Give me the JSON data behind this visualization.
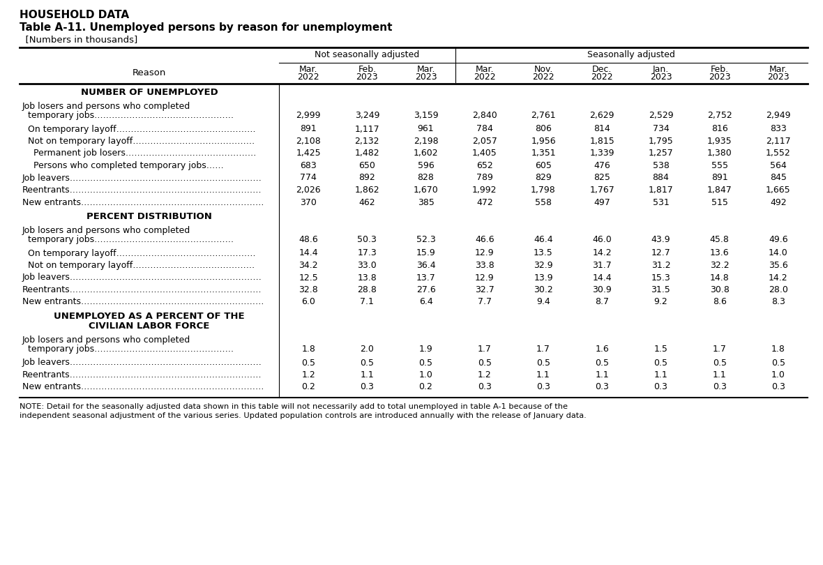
{
  "title1": "HOUSEHOLD DATA",
  "title2": "Table A-11. Unemployed persons by reason for unemployment",
  "title3": "  [Numbers in thousands]",
  "note_line1": "NOTE: Detail for the seasonally adjusted data shown in this table will not necessarily add to total unemployed in table A-1 because of the",
  "note_line2": "independent seasonal adjustment of the various series. Updated population controls are introduced annually with the release of January data.",
  "col_group1": "Not seasonally adjusted",
  "col_group2": "Seasonally adjusted",
  "col_headers": [
    [
      "Mar.",
      "2022"
    ],
    [
      "Feb.",
      "2023"
    ],
    [
      "Mar.",
      "2023"
    ],
    [
      "Mar.",
      "2022"
    ],
    [
      "Nov.",
      "2022"
    ],
    [
      "Dec.",
      "2022"
    ],
    [
      "Jan.",
      "2023"
    ],
    [
      "Feb.",
      "2023"
    ],
    [
      "Mar.",
      "2023"
    ]
  ],
  "rows": [
    {
      "type": "section",
      "label": "NUMBER OF UNEMPLOYED",
      "label2": ""
    },
    {
      "type": "data2",
      "label": "Job losers and persons who completed",
      "label2": "  temporary jobs…………………………………………",
      "values": [
        "2,999",
        "3,249",
        "3,159",
        "2,840",
        "2,761",
        "2,629",
        "2,529",
        "2,752",
        "2,949"
      ]
    },
    {
      "type": "data1",
      "label": "  On temporary layoff…………………………………………",
      "values": [
        "891",
        "1,117",
        "961",
        "784",
        "806",
        "814",
        "734",
        "816",
        "833"
      ]
    },
    {
      "type": "data1",
      "label": "  Not on temporary layoff……………………………………",
      "values": [
        "2,108",
        "2,132",
        "2,198",
        "2,057",
        "1,956",
        "1,815",
        "1,795",
        "1,935",
        "2,117"
      ]
    },
    {
      "type": "data1",
      "label": "    Permanent job losers………………………………………",
      "values": [
        "1,425",
        "1,482",
        "1,602",
        "1,405",
        "1,351",
        "1,339",
        "1,257",
        "1,380",
        "1,552"
      ]
    },
    {
      "type": "data1",
      "label": "    Persons who completed temporary jobs……",
      "values": [
        "683",
        "650",
        "596",
        "652",
        "605",
        "476",
        "538",
        "555",
        "564"
      ]
    },
    {
      "type": "data1",
      "label": "Job leavers…………………………………………………………",
      "values": [
        "774",
        "892",
        "828",
        "789",
        "829",
        "825",
        "884",
        "891",
        "845"
      ]
    },
    {
      "type": "data1",
      "label": "Reentrants…………………………………………………………",
      "values": [
        "2,026",
        "1,862",
        "1,670",
        "1,992",
        "1,798",
        "1,767",
        "1,817",
        "1,847",
        "1,665"
      ]
    },
    {
      "type": "data1",
      "label": "New entrants………………………………………………………",
      "values": [
        "370",
        "462",
        "385",
        "472",
        "558",
        "497",
        "531",
        "515",
        "492"
      ]
    },
    {
      "type": "section",
      "label": "PERCENT DISTRIBUTION",
      "label2": ""
    },
    {
      "type": "data2",
      "label": "Job losers and persons who completed",
      "label2": "  temporary jobs…………………………………………",
      "values": [
        "48.6",
        "50.3",
        "52.3",
        "46.6",
        "46.4",
        "46.0",
        "43.9",
        "45.8",
        "49.6"
      ]
    },
    {
      "type": "data1",
      "label": "  On temporary layoff…………………………………………",
      "values": [
        "14.4",
        "17.3",
        "15.9",
        "12.9",
        "13.5",
        "14.2",
        "12.7",
        "13.6",
        "14.0"
      ]
    },
    {
      "type": "data1",
      "label": "  Not on temporary layoff……………………………………",
      "values": [
        "34.2",
        "33.0",
        "36.4",
        "33.8",
        "32.9",
        "31.7",
        "31.2",
        "32.2",
        "35.6"
      ]
    },
    {
      "type": "data1",
      "label": "Job leavers…………………………………………………………",
      "values": [
        "12.5",
        "13.8",
        "13.7",
        "12.9",
        "13.9",
        "14.4",
        "15.3",
        "14.8",
        "14.2"
      ]
    },
    {
      "type": "data1",
      "label": "Reentrants…………………………………………………………",
      "values": [
        "32.8",
        "28.8",
        "27.6",
        "32.7",
        "30.2",
        "30.9",
        "31.5",
        "30.8",
        "28.0"
      ]
    },
    {
      "type": "data1",
      "label": "New entrants………………………………………………………",
      "values": [
        "6.0",
        "7.1",
        "6.4",
        "7.7",
        "9.4",
        "8.7",
        "9.2",
        "8.6",
        "8.3"
      ]
    },
    {
      "type": "section2",
      "label": "UNEMPLOYED AS A PERCENT OF THE",
      "label2": "CIVILIAN LABOR FORCE"
    },
    {
      "type": "data2",
      "label": "Job losers and persons who completed",
      "label2": "  temporary jobs…………………………………………",
      "values": [
        "1.8",
        "2.0",
        "1.9",
        "1.7",
        "1.7",
        "1.6",
        "1.5",
        "1.7",
        "1.8"
      ]
    },
    {
      "type": "data1",
      "label": "Job leavers…………………………………………………………",
      "values": [
        "0.5",
        "0.5",
        "0.5",
        "0.5",
        "0.5",
        "0.5",
        "0.5",
        "0.5",
        "0.5"
      ]
    },
    {
      "type": "data1",
      "label": "Reentrants…………………………………………………………",
      "values": [
        "1.2",
        "1.1",
        "1.0",
        "1.2",
        "1.1",
        "1.1",
        "1.1",
        "1.1",
        "1.0"
      ]
    },
    {
      "type": "data1",
      "label": "New entrants………………………………………………………",
      "values": [
        "0.2",
        "0.3",
        "0.2",
        "0.3",
        "0.3",
        "0.3",
        "0.3",
        "0.3",
        "0.3"
      ]
    }
  ]
}
